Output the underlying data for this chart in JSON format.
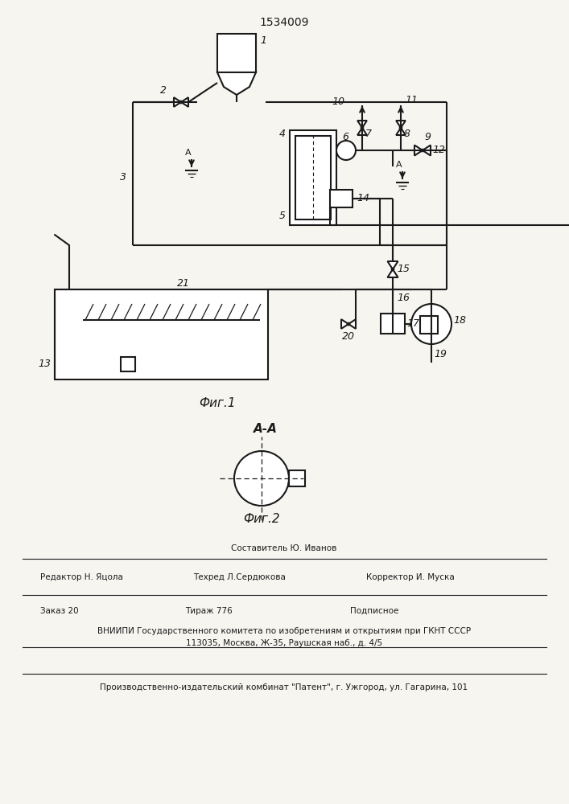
{
  "title": "1534009",
  "fig1_label": "Фиг.1",
  "fig2_label": "Фиг.2",
  "fig2_section": "А-А",
  "bg_color": "#f7f5f0",
  "line_color": "#1a1a1a",
  "footer": {
    "line1_center": "Составитель Ю. Иванов",
    "editor": "Редактор Н. Яцола",
    "tech": "Техред Л.Сердюкова",
    "corrector": "Корректор И. Муска",
    "order": "Заказ 20",
    "tirazh": "Тираж 776",
    "podp": "Подписное",
    "vnipi": "ВНИИПИ Государственного комитета по изобретениям и открытиям при ГКНТ СССР",
    "address": "113035, Москва, Ж-35, Раушская наб., д. 4/5",
    "zavod": "Производственно-издательский комбинат \"Патент\", г. Ужгород, ул. Гагарина, 101"
  }
}
